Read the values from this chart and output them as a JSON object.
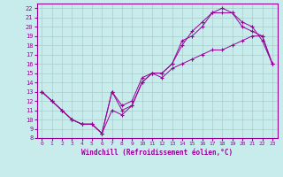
{
  "xlabel": "Windchill (Refroidissement éolien,°C)",
  "bg_color": "#c8ecec",
  "line_color": "#990099",
  "grid_color": "#aacccc",
  "xlim": [
    -0.5,
    23.5
  ],
  "ylim": [
    8,
    22.5
  ],
  "xticks": [
    0,
    1,
    2,
    3,
    4,
    5,
    6,
    7,
    8,
    9,
    10,
    11,
    12,
    13,
    14,
    15,
    16,
    17,
    18,
    19,
    20,
    21,
    22,
    23
  ],
  "yticks": [
    8,
    9,
    10,
    11,
    12,
    13,
    14,
    15,
    16,
    17,
    18,
    19,
    20,
    21,
    22
  ],
  "series": [
    {
      "x": [
        0,
        1,
        2,
        3,
        4,
        5,
        6,
        7,
        8,
        9,
        10,
        11,
        12,
        13,
        14,
        15,
        16,
        17,
        18,
        19,
        20,
        21,
        22,
        23
      ],
      "y": [
        13,
        12,
        11,
        10,
        9.5,
        9.5,
        8.5,
        13,
        11.5,
        12,
        14.5,
        15,
        15,
        16,
        18,
        19.5,
        20.5,
        21.5,
        22,
        21.5,
        20,
        19.5,
        19,
        16
      ]
    },
    {
      "x": [
        0,
        1,
        2,
        3,
        4,
        5,
        6,
        7,
        8,
        9,
        10,
        11,
        12,
        13,
        14,
        15,
        16,
        17,
        18,
        19,
        20,
        21,
        22,
        23
      ],
      "y": [
        13,
        12,
        11,
        10,
        9.5,
        9.5,
        8.5,
        13,
        11,
        11.5,
        14,
        15,
        15,
        16,
        18.5,
        19,
        20,
        21.5,
        21.5,
        21.5,
        20.5,
        20,
        18.5,
        16
      ]
    },
    {
      "x": [
        0,
        1,
        2,
        3,
        4,
        5,
        6,
        7,
        8,
        9,
        10,
        11,
        12,
        13,
        14,
        15,
        16,
        17,
        18,
        19,
        20,
        21,
        22,
        23
      ],
      "y": [
        13,
        12,
        11,
        10,
        9.5,
        9.5,
        8.5,
        11,
        10.5,
        11.5,
        14,
        15,
        14.5,
        15.5,
        16,
        16.5,
        17,
        17.5,
        17.5,
        18,
        18.5,
        19,
        19,
        16
      ]
    }
  ]
}
